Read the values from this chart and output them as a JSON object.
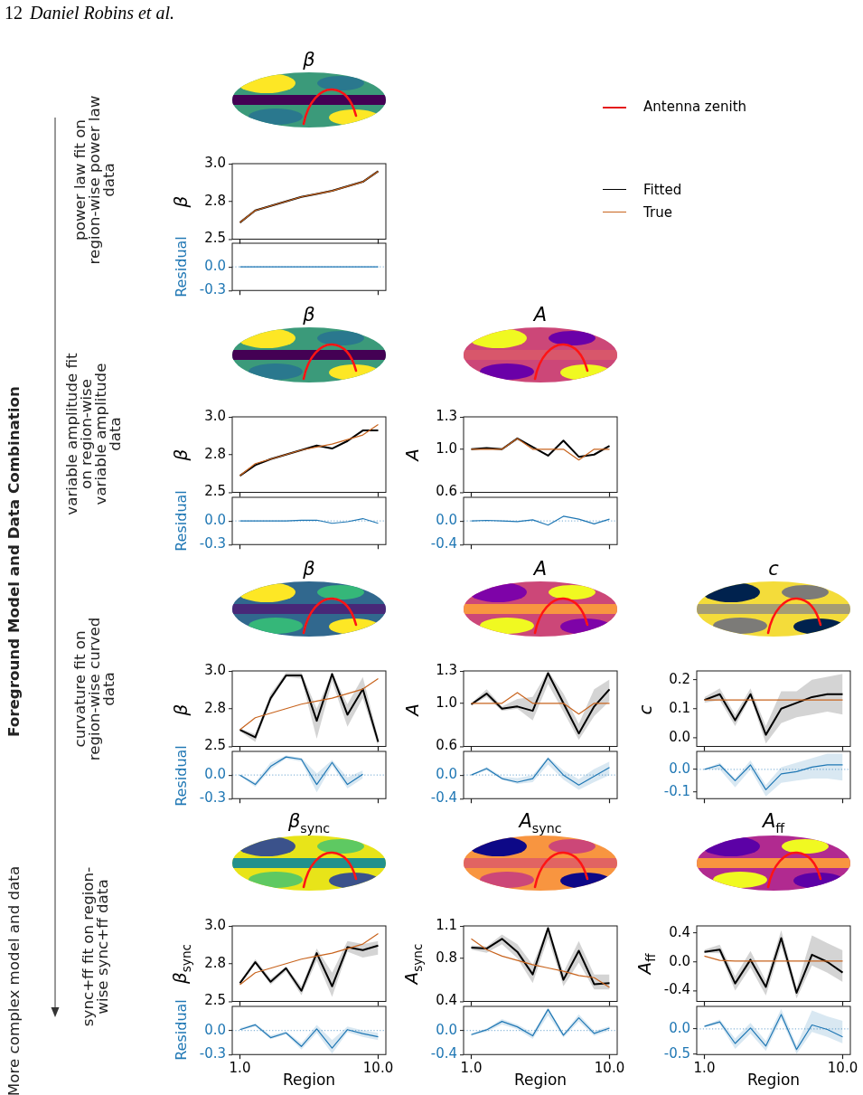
{
  "chart_data": [
    {
      "type": "line",
      "title": "β",
      "ylabel": "β",
      "categories": [
        null,
        null,
        null,
        null,
        null,
        null,
        null,
        null,
        null,
        null
      ],
      "series": [
        {
          "name": "Fitted",
          "color": "#000000",
          "values": [
            2.61,
            2.69,
            2.72,
            2.75,
            2.78,
            2.8,
            2.82,
            2.85,
            2.88,
            2.95
          ]
        },
        {
          "name": "True",
          "color": "#c8641e",
          "values": [
            2.61,
            2.69,
            2.72,
            2.75,
            2.78,
            2.8,
            2.82,
            2.85,
            2.88,
            2.95
          ]
        }
      ],
      "ylim": [
        2.5,
        3
      ],
      "yticks": [
        2.5,
        {
          "value": 2.75,
          "label": "2.8"
        },
        {
          "value": 3,
          "label": "3.0"
        }
      ],
      "legend": "right",
      "annotations": [
        "12",
        "Daniel Robins et al.",
        "Antenna zenith",
        "Foreground Model and Data Combination",
        "More complex model and data",
        "power law fit on region-wise power law data"
      ]
    },
    {
      "type": "line",
      "ylabel": "Residual",
      "categories": [
        null,
        null,
        null,
        null,
        null,
        null,
        null,
        null,
        null,
        null
      ],
      "series": [
        {
          "color": "#1f77b4",
          "values": [
            0,
            0,
            0,
            0,
            0,
            0,
            0,
            0,
            0,
            0
          ]
        }
      ],
      "ylim": [
        -0.3,
        0.3
      ],
      "yticks": [
        -0.3,
        {
          "value": 0,
          "label": "0.0"
        }
      ],
      "ref_lines": [
        {
          "axis": "y",
          "value": 0,
          "color": "#8ab8da",
          "line_style": "dotted"
        }
      ]
    },
    {
      "type": "line",
      "title": "β",
      "ylabel": "β",
      "categories": [
        null,
        null,
        null,
        null,
        null,
        null,
        null,
        null,
        null,
        null
      ],
      "series": [
        {
          "color": "#000000",
          "values": [
            2.61,
            2.68,
            2.72,
            2.75,
            2.78,
            2.81,
            2.79,
            2.84,
            2.91,
            2.91
          ]
        },
        {
          "color": "#c8641e",
          "values": [
            2.61,
            2.69,
            2.72,
            2.75,
            2.78,
            2.8,
            2.82,
            2.85,
            2.88,
            2.95
          ]
        }
      ],
      "ylim": [
        2.5,
        3
      ],
      "yticks": [
        2.5,
        {
          "value": 2.75,
          "label": "2.8"
        },
        {
          "value": 3,
          "label": "3.0"
        }
      ],
      "annotations": [
        "variable amplitude fit on region-wise variable amplitude data"
      ]
    },
    {
      "type": "line",
      "title": "A",
      "ylabel": "A",
      "categories": [
        null,
        null,
        null,
        null,
        null,
        null,
        null,
        null,
        null,
        null
      ],
      "series": [
        {
          "color": "#000000",
          "values": [
            1,
            1.01,
            1,
            1.1,
            1.02,
            0.94,
            1.08,
            0.93,
            0.95,
            1.03
          ]
        },
        {
          "color": "#c8641e",
          "values": [
            1,
            1,
            1,
            1.1,
            1,
            1,
            1,
            0.9,
            1,
            1
          ]
        }
      ],
      "ylim": [
        0.6,
        1.3
      ],
      "yticks": [
        0.6,
        {
          "value": 1,
          "label": "1.0"
        },
        1.3
      ]
    },
    {
      "type": "line",
      "ylabel": "Residual",
      "categories": [
        null,
        null,
        null,
        null,
        null,
        null,
        null,
        null,
        null,
        null
      ],
      "series": [
        {
          "color": "#1f77b4",
          "values": [
            0,
            0,
            0,
            0,
            0.01,
            0.01,
            -0.03,
            -0.01,
            0.03,
            -0.03
          ]
        }
      ],
      "ylim": [
        -0.3,
        0.3
      ],
      "yticks": [
        -0.3,
        {
          "value": 0,
          "label": "0.0"
        }
      ],
      "ref_lines": [
        {
          "axis": "y",
          "value": 0,
          "color": "#8ab8da",
          "line_style": "dotted"
        }
      ]
    },
    {
      "type": "line",
      "categories": [
        null,
        null,
        null,
        null,
        null,
        null,
        null,
        null,
        null,
        null
      ],
      "series": [
        {
          "color": "#1f77b4",
          "values": [
            0,
            0.01,
            0,
            -0.01,
            0.02,
            -0.07,
            0.08,
            0.03,
            -0.05,
            0.03
          ]
        }
      ],
      "ylim": [
        -0.4,
        0.4
      ],
      "yticks": [
        -0.4,
        {
          "value": 0,
          "label": "0.0"
        }
      ],
      "ref_lines": [
        {
          "axis": "y",
          "value": 0,
          "color": "#8ab8da",
          "line_style": "dotted"
        }
      ]
    },
    {
      "type": "line",
      "title": "β",
      "ylabel": "β",
      "categories": [
        null,
        null,
        null,
        null,
        null,
        null,
        null,
        null,
        null,
        null
      ],
      "series": [
        {
          "color": "#000000",
          "values": [
            2.61,
            2.56,
            2.82,
            2.97,
            2.97,
            2.67,
            2.98,
            2.71,
            2.88,
            2.53
          ],
          "lower": [
            2.6,
            2.53,
            2.8,
            2.96,
            2.95,
            2.55,
            2.93,
            2.63,
            2.82,
            2.5
          ],
          "upper": [
            2.62,
            2.58,
            2.85,
            2.99,
            2.99,
            2.75,
            2.99,
            2.78,
            2.96,
            2.56
          ]
        },
        {
          "color": "#c8641e",
          "values": [
            2.61,
            2.69,
            2.72,
            2.75,
            2.78,
            2.8,
            2.82,
            2.85,
            2.88,
            2.95
          ]
        }
      ],
      "ylim": [
        2.5,
        3
      ],
      "yticks": [
        2.5,
        {
          "value": 2.75,
          "label": "2.8"
        },
        {
          "value": 3,
          "label": "3.0"
        }
      ],
      "annotations": [
        "curvature fit on region-wise curved data"
      ]
    },
    {
      "type": "line",
      "title": "A",
      "ylabel": "A",
      "categories": [
        null,
        null,
        null,
        null,
        null,
        null,
        null,
        null,
        null,
        null
      ],
      "series": [
        {
          "color": "#000000",
          "values": [
            0.99,
            1.09,
            0.95,
            0.97,
            0.93,
            1.28,
            1,
            0.72,
            0.97,
            1.13
          ],
          "lower": [
            0.98,
            1.06,
            0.93,
            0.95,
            0.84,
            1.18,
            0.92,
            0.66,
            0.88,
            1.02
          ],
          "upper": [
            1,
            1.13,
            0.97,
            1.04,
            1.06,
            1.3,
            1.09,
            0.81,
            1.13,
            1.22
          ]
        },
        {
          "color": "#c8641e",
          "values": [
            1,
            1,
            1,
            1.1,
            1,
            1,
            1,
            0.9,
            1,
            1
          ]
        }
      ],
      "ylim": [
        0.6,
        1.3
      ],
      "yticks": [
        0.6,
        {
          "value": 1,
          "label": "1.0"
        },
        1.3
      ]
    },
    {
      "type": "line",
      "title": "c",
      "ylabel": "c",
      "categories": [
        null,
        null,
        null,
        null,
        null,
        null,
        null,
        null,
        null,
        null
      ],
      "series": [
        {
          "color": "#000000",
          "values": [
            0.13,
            0.15,
            0.06,
            0.15,
            0.01,
            0.1,
            0.12,
            0.14,
            0.15,
            0.15
          ],
          "lower": [
            0.12,
            0.13,
            0.04,
            0.14,
            -0.02,
            0.05,
            0.07,
            0.08,
            0.09,
            0.08
          ],
          "upper": [
            0.14,
            0.17,
            0.08,
            0.17,
            0.04,
            0.16,
            0.16,
            0.2,
            0.21,
            0.22
          ]
        },
        {
          "color": "#c8641e",
          "values": [
            0.13,
            0.13,
            0.13,
            0.13,
            0.13,
            0.13,
            0.13,
            0.13,
            0.13,
            0.13
          ]
        }
      ],
      "ylim": [
        -0.03,
        0.23
      ],
      "yticks": [
        {
          "value": 0,
          "label": "0.0"
        },
        0.1,
        0.2
      ]
    },
    {
      "type": "line",
      "ylabel": "Residual",
      "categories": [
        null,
        null,
        null,
        null,
        null,
        null,
        null,
        null,
        null,
        null
      ],
      "series": [
        {
          "color": "#1f77b4",
          "values": [
            0,
            -0.12,
            0.11,
            0.23,
            0.2,
            -0.12,
            0.16,
            -0.12,
            0.01,
            null
          ],
          "lower": [
            -0.01,
            -0.15,
            0.07,
            0.21,
            0.17,
            -0.22,
            0.12,
            -0.17,
            -0.04,
            null
          ],
          "upper": [
            0.01,
            -0.09,
            0.16,
            0.25,
            0.22,
            0.02,
            0.19,
            -0.03,
            0.06,
            null
          ]
        }
      ],
      "ylim": [
        -0.3,
        0.3
      ],
      "yticks": [
        -0.3,
        {
          "value": 0,
          "label": "0.0"
        }
      ],
      "ref_lines": [
        {
          "axis": "y",
          "value": 0,
          "color": "#8ab8da",
          "line_style": "dotted"
        }
      ]
    },
    {
      "type": "line",
      "categories": [
        null,
        null,
        null,
        null,
        null,
        null,
        null,
        null,
        null,
        null
      ],
      "series": [
        {
          "color": "#1f77b4",
          "values": [
            0,
            0.11,
            -0.06,
            -0.12,
            -0.06,
            0.28,
            0,
            -0.17,
            -0.02,
            0.13
          ],
          "lower": [
            -0.01,
            0.08,
            -0.08,
            -0.15,
            -0.12,
            0.18,
            -0.08,
            -0.25,
            -0.12,
            0
          ],
          "upper": [
            0.01,
            0.14,
            -0.03,
            -0.05,
            0,
            0.31,
            0.08,
            -0.07,
            0.1,
            0.23
          ]
        }
      ],
      "ylim": [
        -0.4,
        0.4
      ],
      "yticks": [
        -0.4,
        {
          "value": 0,
          "label": "0.0"
        }
      ],
      "ref_lines": [
        {
          "axis": "y",
          "value": 0,
          "color": "#8ab8da",
          "line_style": "dotted"
        }
      ]
    },
    {
      "type": "line",
      "categories": [
        null,
        null,
        null,
        null,
        null,
        null,
        null,
        null,
        null,
        null
      ],
      "series": [
        {
          "color": "#1f77b4",
          "values": [
            0,
            0.02,
            -0.05,
            0.02,
            -0.09,
            -0.02,
            -0.01,
            0.01,
            0.02,
            0.02
          ],
          "lower": [
            0,
            0,
            -0.08,
            0,
            -0.12,
            -0.06,
            -0.05,
            -0.04,
            -0.04,
            -0.05
          ],
          "upper": [
            0,
            0.03,
            -0.04,
            0.04,
            -0.07,
            0.01,
            0.03,
            0.05,
            0.07,
            0.07
          ]
        }
      ],
      "ylim": [
        -0.13,
        0.08
      ],
      "yticks": [
        -0.1,
        {
          "value": 0,
          "label": "0.0"
        }
      ],
      "ref_lines": [
        {
          "axis": "y",
          "value": 0,
          "color": "#8ab8da",
          "line_style": "dotted"
        }
      ]
    },
    {
      "type": "line",
      "title": "β$_{sync}$",
      "ylabel": "β$_{sync}$",
      "categories": [
        null,
        null,
        null,
        null,
        null,
        null,
        null,
        null,
        null,
        null
      ],
      "series": [
        {
          "color": "#000000",
          "values": [
            2.62,
            2.76,
            2.63,
            2.72,
            2.57,
            2.82,
            2.6,
            2.86,
            2.84,
            2.87
          ],
          "lower": [
            2.61,
            2.75,
            2.61,
            2.7,
            2.54,
            2.77,
            2.53,
            2.83,
            2.79,
            2.81
          ],
          "upper": [
            2.63,
            2.78,
            2.65,
            2.73,
            2.6,
            2.85,
            2.69,
            2.9,
            2.88,
            2.9
          ]
        },
        {
          "color": "#c8641e",
          "values": [
            2.61,
            2.69,
            2.72,
            2.75,
            2.78,
            2.8,
            2.82,
            2.85,
            2.88,
            2.95
          ]
        }
      ],
      "ylim": [
        2.5,
        3
      ],
      "yticks": [
        2.5,
        {
          "value": 2.75,
          "label": "2.8"
        },
        {
          "value": 3,
          "label": "3.0"
        }
      ],
      "annotations": [
        "sync+ff fit on region-wise sync+ff data"
      ]
    },
    {
      "type": "line",
      "title": "A$_{sync}$",
      "ylabel": "A$_{sync}$",
      "categories": [
        null,
        null,
        null,
        null,
        null,
        null,
        null,
        null,
        null,
        null
      ],
      "series": [
        {
          "color": "#000000",
          "values": [
            0.9,
            0.89,
            0.98,
            0.86,
            0.65,
            1.08,
            0.6,
            0.87,
            0.56,
            0.57
          ],
          "lower": [
            0.88,
            0.85,
            0.93,
            0.8,
            0.57,
            0.99,
            0.54,
            0.76,
            0.51,
            0.51
          ],
          "upper": [
            0.92,
            0.91,
            1.02,
            0.93,
            0.74,
            1.1,
            0.67,
            0.96,
            0.65,
            0.65
          ]
        },
        {
          "color": "#c8641e",
          "values": [
            0.98,
            0.88,
            0.82,
            0.78,
            0.74,
            0.71,
            0.68,
            0.64,
            0.62,
            0.53
          ]
        }
      ],
      "ylim": [
        0.4,
        1.1
      ],
      "yticks": [
        0.4,
        0.8,
        1.1
      ]
    },
    {
      "type": "line",
      "title": "A$_{ff}$",
      "ylabel": "A$_{ff}$",
      "categories": [
        null,
        null,
        null,
        null,
        null,
        null,
        null,
        null,
        null,
        null
      ],
      "series": [
        {
          "color": "#000000",
          "values": [
            0.14,
            0.17,
            -0.3,
            0.03,
            -0.35,
            0.33,
            -0.43,
            0.1,
            0,
            -0.15
          ],
          "lower": [
            0.13,
            0.12,
            -0.4,
            -0.08,
            -0.47,
            0.22,
            -0.51,
            -0.05,
            -0.15,
            -0.28
          ],
          "upper": [
            0.17,
            0.24,
            -0.2,
            0.15,
            -0.26,
            0.44,
            -0.36,
            0.37,
            0.26,
            0.16
          ]
        },
        {
          "color": "#c8641e",
          "values": [
            0.08,
            0.02,
            0.01,
            0.01,
            0.01,
            0.01,
            0.01,
            0.01,
            0.01,
            0.01
          ]
        }
      ],
      "ylim": [
        -0.55,
        0.5
      ],
      "yticks": [
        -0.4,
        {
          "value": 0,
          "label": "0.0"
        },
        0.4
      ]
    },
    {
      "type": "line",
      "xlabel": "Region",
      "ylabel": "Residual",
      "categories": [
        "1.0",
        null,
        null,
        null,
        null,
        null,
        null,
        null,
        null,
        "10.0"
      ],
      "series": [
        {
          "color": "#1f77b4",
          "values": [
            0.01,
            0.07,
            -0.09,
            -0.03,
            -0.2,
            0.02,
            -0.22,
            0.01,
            -0.04,
            -0.08
          ],
          "lower": [
            0,
            0.05,
            -0.11,
            -0.05,
            -0.24,
            -0.03,
            -0.29,
            -0.02,
            -0.08,
            -0.12
          ],
          "upper": [
            0.03,
            0.09,
            -0.06,
            -0.01,
            -0.16,
            0.07,
            -0.12,
            0.05,
            0,
            -0.03
          ]
        }
      ],
      "ylim": [
        -0.3,
        0.3
      ],
      "yticks": [
        -0.3,
        {
          "value": 0,
          "label": "0.0"
        }
      ],
      "ref_lines": [
        {
          "axis": "y",
          "value": 0,
          "color": "#8ab8da",
          "line_style": "dotted"
        }
      ]
    },
    {
      "type": "line",
      "xlabel": "Region",
      "categories": [
        "1.0",
        null,
        null,
        null,
        null,
        null,
        null,
        null,
        null,
        "10.0"
      ],
      "series": [
        {
          "color": "#1f77b4",
          "values": [
            -0.07,
            0.01,
            0.15,
            0.06,
            -0.09,
            0.35,
            -0.08,
            0.21,
            -0.05,
            0.04
          ],
          "lower": [
            -0.09,
            -0.02,
            0.1,
            0.02,
            -0.14,
            0.25,
            -0.12,
            0.15,
            -0.09,
            0
          ],
          "upper": [
            -0.05,
            0.03,
            0.19,
            0.1,
            -0.04,
            0.38,
            -0.05,
            0.27,
            -0.01,
            0.07
          ]
        }
      ],
      "ylim": [
        -0.4,
        0.4
      ],
      "yticks": [
        -0.4,
        {
          "value": 0,
          "label": "0.0"
        }
      ],
      "ref_lines": [
        {
          "axis": "y",
          "value": 0,
          "color": "#8ab8da",
          "line_style": "dotted"
        }
      ]
    },
    {
      "type": "line",
      "xlabel": "Region",
      "categories": [
        "1.0",
        null,
        null,
        null,
        null,
        null,
        null,
        null,
        null,
        "10.0"
      ],
      "series": [
        {
          "color": "#1f77b4",
          "values": [
            0.05,
            0.14,
            -0.29,
            0.02,
            -0.34,
            0.29,
            -0.41,
            0.08,
            -0.01,
            -0.16
          ],
          "lower": [
            0.03,
            0.1,
            -0.4,
            -0.09,
            -0.44,
            0.2,
            -0.5,
            -0.06,
            -0.16,
            -0.29
          ],
          "upper": [
            0.07,
            0.19,
            -0.19,
            0.12,
            -0.24,
            0.4,
            -0.33,
            0.37,
            0.25,
            0.16
          ]
        }
      ],
      "ylim": [
        -0.51,
        0.45
      ],
      "yticks": [
        -0.5,
        {
          "value": 0,
          "label": "0.0"
        }
      ],
      "ref_lines": [
        {
          "axis": "y",
          "value": 0,
          "color": "#8ab8da",
          "line_style": "dotted"
        }
      ]
    }
  ]
}
